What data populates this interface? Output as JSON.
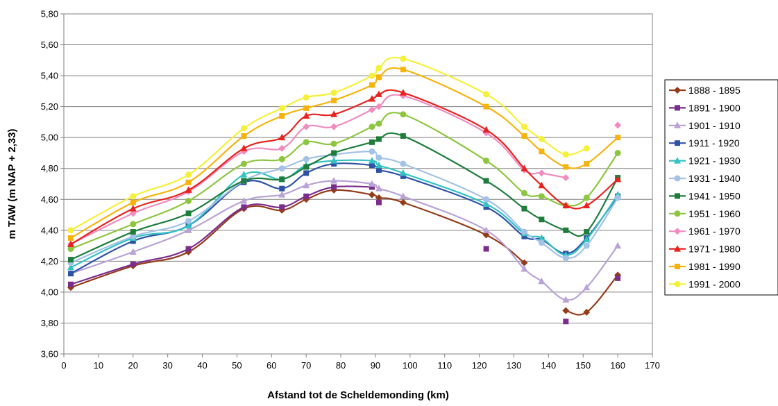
{
  "chart_data": {
    "type": "line",
    "xlabel": "Afstand tot de Scheldemonding (km)",
    "ylabel": "m TAW (m NAP + 2,33)",
    "xlim": [
      0,
      170
    ],
    "ylim": [
      3.6,
      5.8
    ],
    "x_ticks": [
      "0",
      "10",
      "20",
      "30",
      "40",
      "50",
      "60",
      "70",
      "80",
      "90",
      "100",
      "110",
      "120",
      "130",
      "140",
      "150",
      "160",
      "170"
    ],
    "y_ticks": [
      "3,60",
      "3,80",
      "4,00",
      "4,20",
      "4,40",
      "4,60",
      "4,80",
      "5,00",
      "5,20",
      "5,40",
      "5,60",
      "5,80"
    ],
    "grid": "horizontal",
    "legend_position": "right",
    "series": [
      {
        "name": "1888 - 1895",
        "color": "#943c1a",
        "marker": "diamond",
        "points": [
          [
            2,
            4.03
          ],
          [
            20,
            4.17
          ],
          [
            36,
            4.26
          ],
          [
            52,
            4.54
          ],
          [
            63,
            4.53
          ],
          [
            70,
            4.6
          ],
          [
            78,
            4.66
          ],
          [
            89,
            4.63
          ],
          [
            91,
            4.61
          ],
          [
            98,
            4.58
          ],
          [
            122,
            4.37
          ],
          [
            133,
            4.19
          ]
        ],
        "points2": [
          [
            145,
            3.88
          ],
          [
            151,
            3.87
          ],
          [
            160,
            4.11
          ]
        ]
      },
      {
        "name": "1891 - 1900",
        "color": "#7b2d8c",
        "marker": "square",
        "points": [
          [
            2,
            4.05
          ],
          [
            20,
            4.18
          ],
          [
            36,
            4.28
          ],
          [
            52,
            4.55
          ],
          [
            63,
            4.55
          ],
          [
            70,
            4.62
          ],
          [
            78,
            4.68
          ],
          [
            89,
            4.68
          ]
        ],
        "scatter": [
          [
            91,
            4.58
          ],
          [
            122,
            4.28
          ],
          [
            145,
            3.81
          ],
          [
            160,
            4.09
          ]
        ]
      },
      {
        "name": "1901 - 1910",
        "color": "#b8a2d6",
        "marker": "triangle",
        "points": [
          [
            2,
            4.12
          ],
          [
            20,
            4.26
          ],
          [
            36,
            4.4
          ],
          [
            52,
            4.59
          ],
          [
            63,
            4.63
          ],
          [
            70,
            4.69
          ],
          [
            78,
            4.72
          ],
          [
            89,
            4.7
          ],
          [
            91,
            4.67
          ],
          [
            98,
            4.62
          ],
          [
            122,
            4.4
          ],
          [
            133,
            4.15
          ],
          [
            138,
            4.07
          ],
          [
            145,
            3.95
          ],
          [
            151,
            4.03
          ],
          [
            160,
            4.3
          ]
        ]
      },
      {
        "name": "1911 - 1920",
        "color": "#2d52a6",
        "marker": "square",
        "points": [
          [
            2,
            4.12
          ],
          [
            20,
            4.33
          ],
          [
            36,
            4.43
          ],
          [
            52,
            4.71
          ],
          [
            63,
            4.67
          ],
          [
            70,
            4.77
          ],
          [
            78,
            4.83
          ],
          [
            89,
            4.82
          ],
          [
            91,
            4.79
          ],
          [
            98,
            4.75
          ],
          [
            122,
            4.55
          ],
          [
            133,
            4.36
          ],
          [
            138,
            4.34
          ],
          [
            145,
            4.25
          ],
          [
            151,
            4.35
          ],
          [
            160,
            4.62
          ]
        ]
      },
      {
        "name": "1921 - 1930",
        "color": "#33c2c2",
        "marker": "triangle",
        "points": [
          [
            2,
            4.16
          ],
          [
            20,
            4.35
          ],
          [
            36,
            4.43
          ],
          [
            52,
            4.76
          ],
          [
            63,
            4.73
          ],
          [
            70,
            4.82
          ],
          [
            78,
            4.85
          ],
          [
            89,
            4.85
          ],
          [
            91,
            4.82
          ],
          [
            98,
            4.77
          ],
          [
            122,
            4.57
          ],
          [
            133,
            4.38
          ],
          [
            138,
            4.35
          ],
          [
            145,
            4.24
          ],
          [
            151,
            4.34
          ],
          [
            160,
            4.63
          ]
        ]
      },
      {
        "name": "1931 - 1940",
        "color": "#a2c2e6",
        "marker": "circle",
        "points": [
          [
            2,
            4.19
          ],
          [
            20,
            4.36
          ],
          [
            36,
            4.46
          ],
          [
            52,
            4.72
          ],
          [
            63,
            4.8
          ],
          [
            70,
            4.86
          ],
          [
            78,
            4.89
          ],
          [
            89,
            4.91
          ],
          [
            91,
            4.87
          ],
          [
            98,
            4.83
          ],
          [
            122,
            4.6
          ],
          [
            133,
            4.39
          ],
          [
            138,
            4.32
          ],
          [
            145,
            4.22
          ],
          [
            151,
            4.3
          ],
          [
            160,
            4.61
          ]
        ]
      },
      {
        "name": "1941 - 1950",
        "color": "#1e7d3c",
        "marker": "square",
        "points": [
          [
            2,
            4.21
          ],
          [
            20,
            4.39
          ],
          [
            36,
            4.51
          ],
          [
            52,
            4.72
          ],
          [
            63,
            4.73
          ],
          [
            70,
            4.81
          ],
          [
            78,
            4.9
          ],
          [
            89,
            4.97
          ],
          [
            91,
            4.99
          ],
          [
            98,
            5.01
          ],
          [
            122,
            4.72
          ],
          [
            133,
            4.54
          ],
          [
            138,
            4.47
          ],
          [
            145,
            4.4
          ],
          [
            151,
            4.39
          ],
          [
            160,
            4.74
          ]
        ]
      },
      {
        "name": "1951 - 1960",
        "color": "#8cc63f",
        "marker": "circle",
        "points": [
          [
            2,
            4.28
          ],
          [
            20,
            4.44
          ],
          [
            36,
            4.59
          ],
          [
            52,
            4.83
          ],
          [
            63,
            4.86
          ],
          [
            70,
            4.97
          ],
          [
            78,
            4.96
          ],
          [
            89,
            5.07
          ],
          [
            91,
            5.09
          ],
          [
            98,
            5.15
          ],
          [
            122,
            4.85
          ],
          [
            133,
            4.64
          ],
          [
            138,
            4.62
          ],
          [
            145,
            4.56
          ],
          [
            151,
            4.61
          ],
          [
            160,
            4.9
          ]
        ]
      },
      {
        "name": "1961 - 1970",
        "color": "#f08cc0",
        "marker": "diamond",
        "points": [
          [
            2,
            4.31
          ],
          [
            20,
            4.51
          ],
          [
            36,
            4.65
          ],
          [
            52,
            4.91
          ],
          [
            63,
            4.93
          ],
          [
            70,
            5.07
          ],
          [
            78,
            5.07
          ],
          [
            89,
            5.18
          ],
          [
            91,
            5.2
          ],
          [
            98,
            5.27
          ],
          [
            122,
            5.03
          ],
          [
            133,
            4.79
          ],
          [
            138,
            4.77
          ],
          [
            145,
            4.74
          ]
        ],
        "scatter": [
          [
            160,
            5.08
          ]
        ]
      },
      {
        "name": "1971 - 1980",
        "color": "#e8221e",
        "marker": "triangle",
        "points": [
          [
            2,
            4.31
          ],
          [
            20,
            4.54
          ],
          [
            36,
            4.66
          ],
          [
            52,
            4.93
          ],
          [
            63,
            5.0
          ],
          [
            70,
            5.14
          ],
          [
            78,
            5.15
          ],
          [
            89,
            5.25
          ],
          [
            91,
            5.28
          ],
          [
            98,
            5.29
          ],
          [
            122,
            5.05
          ],
          [
            133,
            4.8
          ],
          [
            138,
            4.69
          ],
          [
            145,
            4.56
          ],
          [
            151,
            4.56
          ],
          [
            160,
            4.73
          ]
        ]
      },
      {
        "name": "1981 - 1990",
        "color": "#f7b30c",
        "marker": "square",
        "points": [
          [
            2,
            4.35
          ],
          [
            20,
            4.58
          ],
          [
            36,
            4.71
          ],
          [
            52,
            5.01
          ],
          [
            63,
            5.14
          ],
          [
            70,
            5.19
          ],
          [
            78,
            5.24
          ],
          [
            89,
            5.34
          ],
          [
            91,
            5.39
          ],
          [
            98,
            5.44
          ],
          [
            122,
            5.2
          ],
          [
            133,
            5.01
          ],
          [
            138,
            4.91
          ],
          [
            145,
            4.81
          ],
          [
            151,
            4.83
          ],
          [
            160,
            5.0
          ]
        ]
      },
      {
        "name": "1991 - 2000",
        "color": "#f5f03a",
        "marker": "circle",
        "points": [
          [
            2,
            4.4
          ],
          [
            20,
            4.62
          ],
          [
            36,
            4.76
          ],
          [
            52,
            5.06
          ],
          [
            63,
            5.19
          ],
          [
            70,
            5.26
          ],
          [
            78,
            5.29
          ],
          [
            89,
            5.4
          ],
          [
            91,
            5.45
          ],
          [
            98,
            5.51
          ],
          [
            122,
            5.28
          ],
          [
            133,
            5.07
          ],
          [
            138,
            4.99
          ],
          [
            145,
            4.89
          ],
          [
            151,
            4.93
          ]
        ]
      }
    ]
  }
}
